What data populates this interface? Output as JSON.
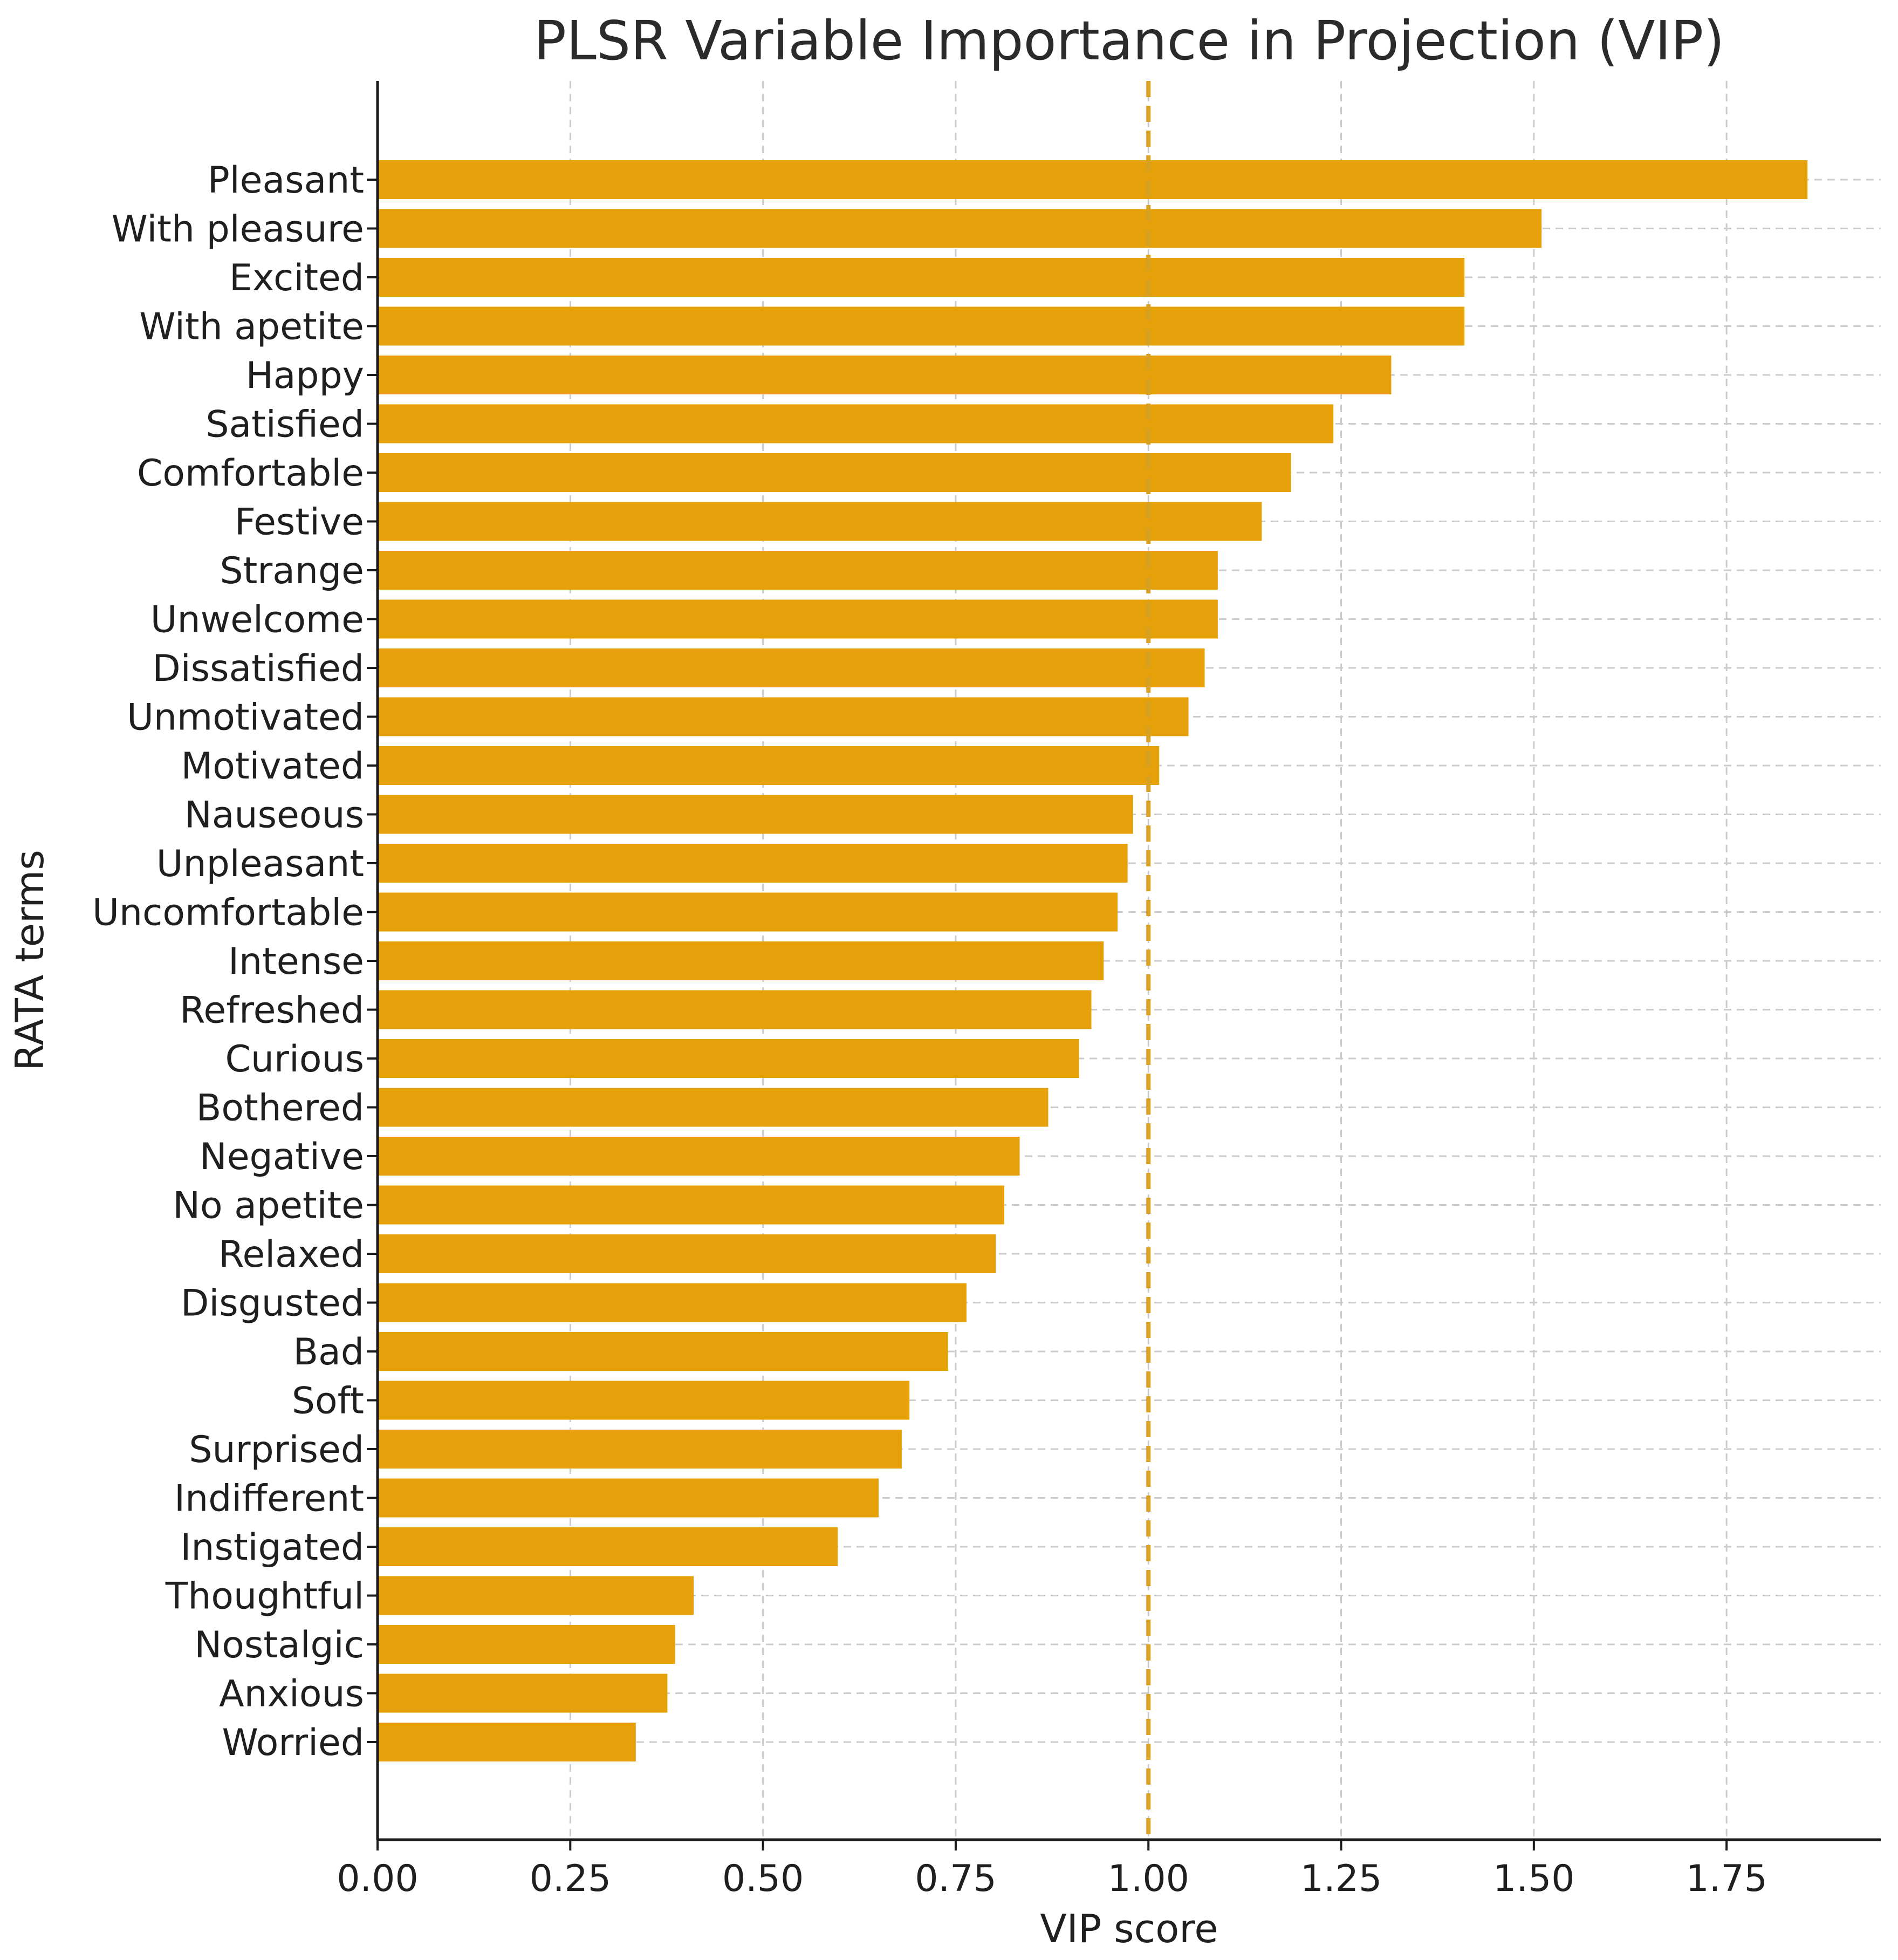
{
  "chart_data": {
    "type": "bar",
    "orientation": "horizontal",
    "title": "PLSR Variable Importance in Projection (VIP)",
    "xlabel": "VIP score",
    "ylabel": "RATA terms",
    "xlim": [
      0,
      1.95
    ],
    "xticks": [
      0.0,
      0.25,
      0.5,
      0.75,
      1.0,
      1.25,
      1.5,
      1.75
    ],
    "xtick_labels": [
      "0.00",
      "0.25",
      "0.50",
      "0.75",
      "1.00",
      "1.25",
      "1.50",
      "1.75"
    ],
    "threshold": 1.0,
    "grid": true,
    "bar_color": "#E6A00A",
    "threshold_color": "#D8A020",
    "grid_color": "#cccccc",
    "categories": [
      "Pleasant",
      "With pleasure",
      "Excited",
      "With apetite",
      "Happy",
      "Satisfied",
      "Comfortable",
      "Festive",
      "Strange",
      "Unwelcome",
      "Dissatisfied",
      "Unmotivated",
      "Motivated",
      "Nauseous",
      "Unpleasant",
      "Uncomfortable",
      "Intense",
      "Refreshed",
      "Curious",
      "Bothered",
      "Negative",
      "No apetite",
      "Relaxed",
      "Disgusted",
      "Bad",
      "Soft",
      "Surprised",
      "Indifferent",
      "Instigated",
      "Thoughtful",
      "Nostalgic",
      "Anxious",
      "Worried"
    ],
    "values": [
      1.855,
      1.51,
      1.41,
      1.41,
      1.315,
      1.24,
      1.185,
      1.147,
      1.09,
      1.09,
      1.073,
      1.052,
      1.014,
      0.98,
      0.973,
      0.96,
      0.942,
      0.926,
      0.91,
      0.87,
      0.833,
      0.813,
      0.802,
      0.764,
      0.74,
      0.69,
      0.68,
      0.65,
      0.597,
      0.41,
      0.386,
      0.376,
      0.335
    ]
  }
}
